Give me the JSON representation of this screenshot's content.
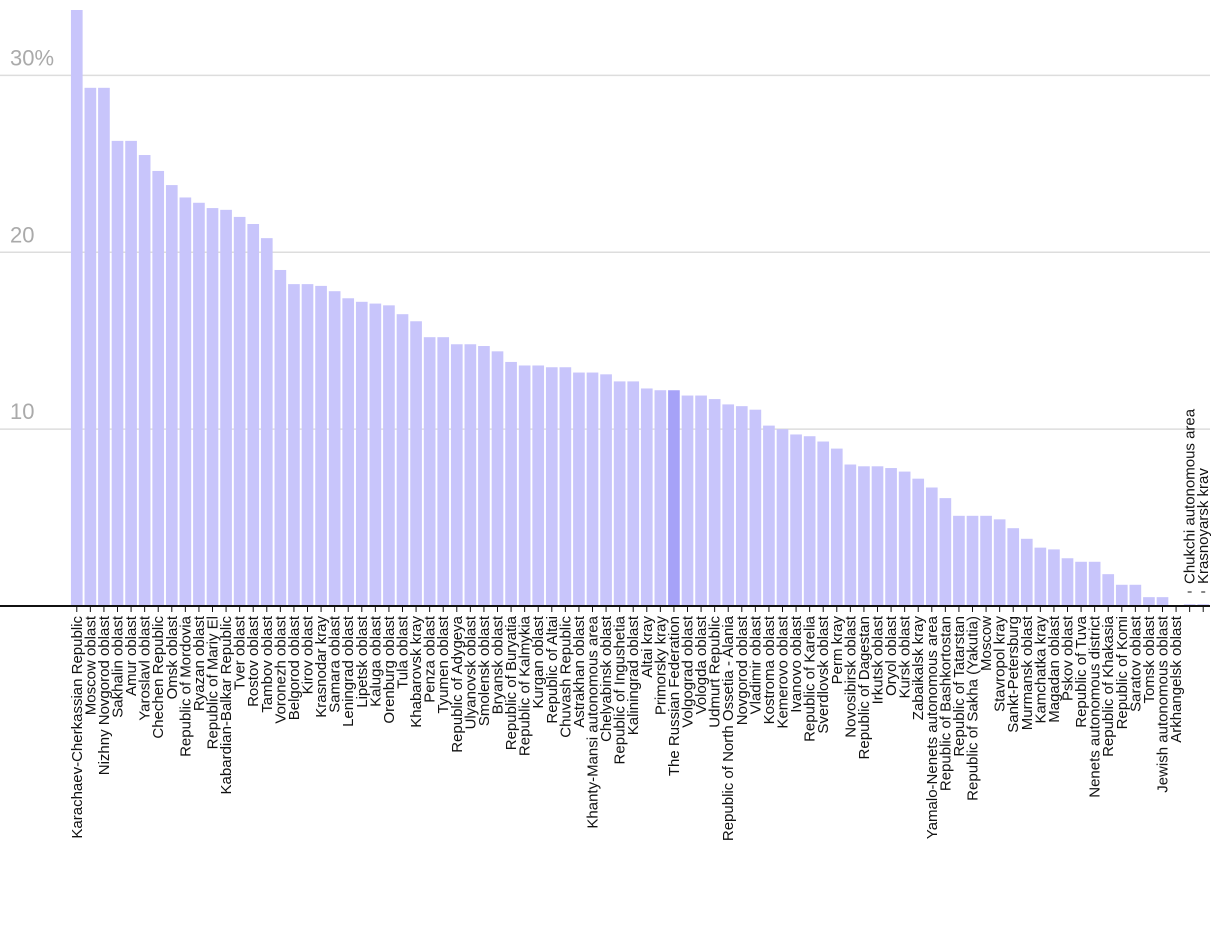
{
  "chart_data": {
    "type": "bar",
    "categories": [
      "Karachaev-Cherkassian Republic",
      "Moscow oblast",
      "Nizhny Novgorod oblast",
      "Sakhalin oblast",
      "Amur oblast",
      "Yaroslavl oblast",
      "Chechen Republic",
      "Omsk oblast",
      "Republic of Mordovia",
      "Ryazan oblast",
      "Republic of Mariy El",
      "Kabardian-Balkar Republic",
      "Tver oblast",
      "Rostov oblast",
      "Tambov oblast",
      "Voronezh oblast",
      "Belgorod oblast",
      "Kirov oblast",
      "Krasnodar kray",
      "Samara oblast",
      "Leningrad oblast",
      "Lipetsk oblast",
      "Kaluga oblast",
      "Orenburg oblast",
      "Tula oblast",
      "Khabarovsk kray",
      "Penza oblast",
      "Tyumen oblast",
      "Republic of Adygeya",
      "Ulyanovsk oblast",
      "Smolensk oblast",
      "Bryansk oblast",
      "Republic of Buryatia",
      "Republic of Kalmykia",
      "Kurgan oblast",
      "Republic of Altai",
      "Chuvash Republic",
      "Astrakhan oblast",
      "Khanty-Mansi autonomous area",
      "Chelyabinsk oblast",
      "Republic of Ingushetia",
      "Kaliningrad oblast",
      "Altai kray",
      "Primorsky kray",
      "The Russian Federation",
      "Volgograd oblast",
      "Vologda oblast",
      "Udmurt Republic",
      "Republic of North Ossetia - Alania",
      "Novgorod oblast",
      "Vladimir oblast",
      "Kostroma oblast",
      "Kemerovo oblast",
      "Ivanovo oblast",
      "Republic of Karelia",
      "Sverdlovsk oblast",
      "Perm kray",
      "Novosibirsk oblast",
      "Republic of Dagestan",
      "Irkutsk oblast",
      "Oryol oblast",
      "Kursk oblast",
      "Zabaikalsk kray",
      "Yamalo-Nenets autonomous area",
      "Republic of Bashkortostan",
      "Republic of Tatarstan",
      "Republic of Sakha (Yakutia)",
      "Moscow",
      "Stavropol kray",
      "Sankt-Petersburg",
      "Murmansk oblast",
      "Kamchatka kray",
      "Magadan oblast",
      "Pskov oblast",
      "Republic of Tuva",
      "Nenets autonomous district",
      "Republic of Khakasia",
      "Republic of Komi",
      "Saratov oblast",
      "Tomsk oblast",
      "Jewish autonomous oblast",
      "Arkhangelsk oblast",
      "Chukchi autonomous area",
      "Krasnoyarsk krav"
    ],
    "values": [
      33.7,
      29.3,
      29.3,
      26.3,
      26.3,
      25.5,
      24.6,
      23.8,
      23.1,
      22.8,
      22.5,
      22.4,
      22.0,
      21.6,
      20.8,
      19.0,
      18.2,
      18.2,
      18.1,
      17.8,
      17.4,
      17.2,
      17.1,
      17.0,
      16.5,
      16.1,
      15.2,
      15.2,
      14.8,
      14.8,
      14.7,
      14.4,
      13.8,
      13.6,
      13.6,
      13.5,
      13.5,
      13.2,
      13.2,
      13.1,
      12.7,
      12.7,
      12.3,
      12.2,
      12.2,
      11.9,
      11.9,
      11.7,
      11.4,
      11.3,
      11.1,
      10.2,
      10.0,
      9.7,
      9.6,
      9.3,
      8.9,
      8.0,
      7.9,
      7.9,
      7.8,
      7.6,
      7.2,
      6.7,
      6.1,
      5.1,
      5.1,
      5.1,
      4.9,
      4.4,
      3.8,
      3.3,
      3.2,
      2.7,
      2.5,
      2.5,
      1.8,
      1.2,
      1.2,
      0.5,
      0.5,
      0,
      0.1,
      0.1
    ],
    "color": "#c8c5fb",
    "highlight": "The Russian Federation",
    "highlight_color": "#a6a2f8",
    "ylim": [
      0,
      33.7
    ],
    "yticks": [
      10,
      20,
      {
        "value": 30,
        "label": "30%"
      }
    ],
    "grid": true
  }
}
